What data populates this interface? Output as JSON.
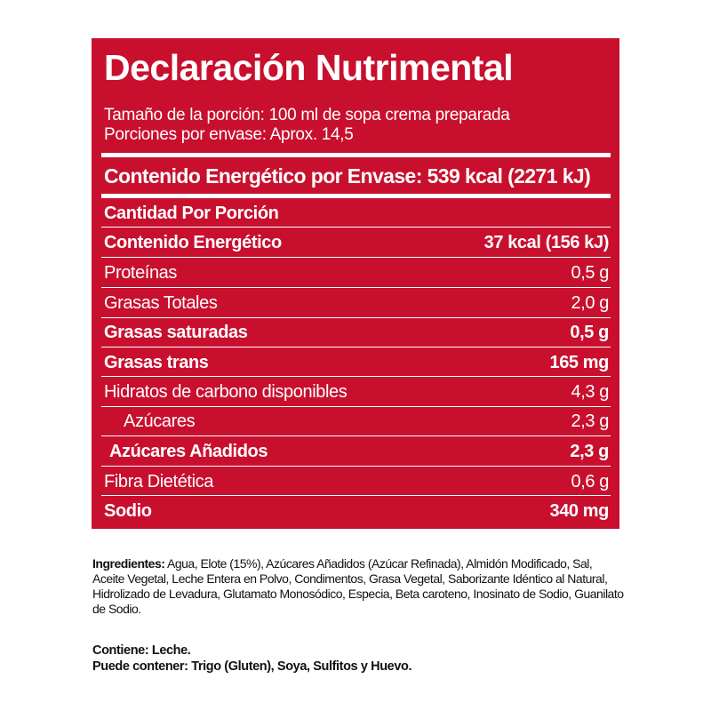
{
  "panel": {
    "title": "Declaración Nutrimental",
    "serving_size": "Tamaño de la porción: 100 ml de sopa crema preparada",
    "servings_per_container": "Porciones por envase: Aprox. 14,5",
    "energy_per_container": "Contenido Energético por Envase: 539 kcal (2271 kJ)",
    "amount_per_serving": "Cantidad Por Porción",
    "colors": {
      "background": "#c8102e",
      "text": "#ffffff"
    },
    "rows": [
      {
        "label": "Contenido Energético",
        "value": "37 kcal (156 kJ)"
      },
      {
        "label": "Proteínas",
        "value": "0,5 g"
      },
      {
        "label": "Grasas Totales",
        "value": "2,0 g"
      },
      {
        "label": "Grasas saturadas",
        "value": "0,5 g"
      },
      {
        "label": "Grasas trans",
        "value": "165 mg"
      },
      {
        "label": "Hidratos de carbono disponibles",
        "value": "4,3 g"
      },
      {
        "label": "Azúcares",
        "value": "2,3 g"
      },
      {
        "label": "Azúcares Añadidos",
        "value": "2,3 g"
      },
      {
        "label": "Fibra Dietética",
        "value": "0,6 g"
      },
      {
        "label": "Sodio",
        "value": "340 mg"
      }
    ]
  },
  "ingredients": {
    "label": "Ingredientes:",
    "text": " Agua, Elote (15%), Azúcares Añadidos (Azúcar Refinada), Almidón Modificado, Sal, Aceite Vegetal, Leche Entera en Polvo, Condimentos, Grasa Vegetal, Saborizante Idéntico al Natural, Hidrolizado de Levadura, Glutamato Monosódico, Especia, Beta caroteno, Inosinato de Sodio, Guanilato de Sodio."
  },
  "allergens": {
    "contains": "Contiene: Leche.",
    "may_contain": "Puede contener: Trigo (Gluten), Soya, Sulfitos y Huevo."
  }
}
